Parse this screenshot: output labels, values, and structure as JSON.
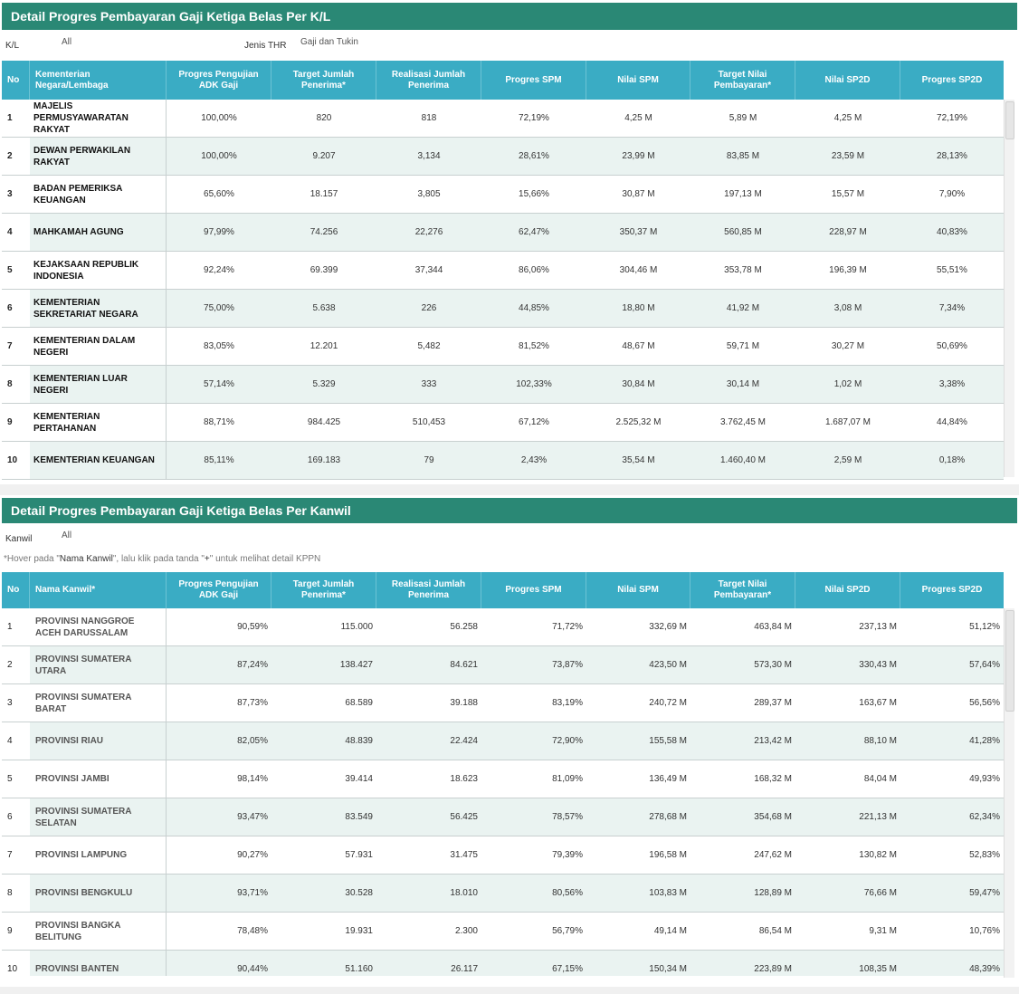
{
  "kl_section": {
    "title": "Detail Progres Pembayaran Gaji Ketiga Belas Per K/L",
    "filters": {
      "kl_label": "K/L",
      "kl_value": "All",
      "jenis_label": "Jenis THR",
      "jenis_value": "Gaji dan Tukin"
    },
    "columns": [
      "No",
      "Kementerian Negara/Lembaga",
      "Progres Pengujian ADK Gaji",
      "Target Jumlah Penerima*",
      "Realisasi Jumlah Penerima",
      "Progres SPM",
      "Nilai SPM",
      "Target Nilai Pembayaran*",
      "Nilai SP2D",
      "Progres SP2D"
    ],
    "rows": [
      [
        "1",
        "MAJELIS PERMUSYAWARATAN RAKYAT",
        "100,00%",
        "820",
        "818",
        "72,19%",
        "4,25 M",
        "5,89 M",
        "4,25 M",
        "72,19%"
      ],
      [
        "2",
        "DEWAN PERWAKILAN RAKYAT",
        "100,00%",
        "9.207",
        "3,134",
        "28,61%",
        "23,99 M",
        "83,85 M",
        "23,59 M",
        "28,13%"
      ],
      [
        "3",
        "BADAN PEMERIKSA KEUANGAN",
        "65,60%",
        "18.157",
        "3,805",
        "15,66%",
        "30,87 M",
        "197,13 M",
        "15,57 M",
        "7,90%"
      ],
      [
        "4",
        "MAHKAMAH AGUNG",
        "97,99%",
        "74.256",
        "22,276",
        "62,47%",
        "350,37 M",
        "560,85 M",
        "228,97 M",
        "40,83%"
      ],
      [
        "5",
        "KEJAKSAAN REPUBLIK INDONESIA",
        "92,24%",
        "69.399",
        "37,344",
        "86,06%",
        "304,46 M",
        "353,78 M",
        "196,39 M",
        "55,51%"
      ],
      [
        "6",
        "KEMENTERIAN SEKRETARIAT NEGARA",
        "75,00%",
        "5.638",
        "226",
        "44,85%",
        "18,80 M",
        "41,92 M",
        "3,08 M",
        "7,34%"
      ],
      [
        "7",
        "KEMENTERIAN DALAM  NEGERI",
        "83,05%",
        "12.201",
        "5,482",
        "81,52%",
        "48,67 M",
        "59,71 M",
        "30,27 M",
        "50,69%"
      ],
      [
        "8",
        "KEMENTERIAN LUAR NEGERI",
        "57,14%",
        "5.329",
        "333",
        "102,33%",
        "30,84 M",
        "30,14 M",
        "1,02 M",
        "3,38%"
      ],
      [
        "9",
        "KEMENTERIAN PERTAHANAN",
        "88,71%",
        "984.425",
        "510,453",
        "67,12%",
        "2.525,32 M",
        "3.762,45 M",
        "1.687,07 M",
        "44,84%"
      ],
      [
        "10",
        "KEMENTERIAN KEUANGAN",
        "85,11%",
        "169.183",
        "79",
        "2,43%",
        "35,54 M",
        "1.460,40 M",
        "2,59 M",
        "0,18%"
      ]
    ]
  },
  "kanwil_section": {
    "title": "Detail Progres Pembayaran Gaji Ketiga Belas Per Kanwil",
    "filters": {
      "kanwil_label": "Kanwil",
      "kanwil_value": "All"
    },
    "hint": {
      "part1": "*Hover pada \"",
      "bold1": "Nama Kanwil",
      "part2": "\", lalu klik pada tanda \"",
      "bold2": "+",
      "part3": "\" untuk melihat detail KPPN"
    },
    "columns": [
      "No",
      "Nama Kanwil*",
      "Progres Pengujian ADK Gaji",
      "Target Jumlah Penerima*",
      "Realisasi Jumlah Penerima",
      "Progres SPM",
      "Nilai SPM",
      "Target Nilai Pembayaran*",
      "Nilai SP2D",
      "Progres SP2D"
    ],
    "rows": [
      [
        "1",
        "PROVINSI NANGGROE ACEH DARUSSALAM",
        "90,59%",
        "115.000",
        "56.258",
        "71,72%",
        "332,69 M",
        "463,84 M",
        "237,13 M",
        "51,12%"
      ],
      [
        "2",
        "PROVINSI SUMATERA UTARA",
        "87,24%",
        "138.427",
        "84.621",
        "73,87%",
        "423,50 M",
        "573,30 M",
        "330,43 M",
        "57,64%"
      ],
      [
        "3",
        "PROVINSI SUMATERA BARAT",
        "87,73%",
        "68.589",
        "39.188",
        "83,19%",
        "240,72 M",
        "289,37 M",
        "163,67 M",
        "56,56%"
      ],
      [
        "4",
        "PROVINSI RIAU",
        "82,05%",
        "48.839",
        "22.424",
        "72,90%",
        "155,58 M",
        "213,42 M",
        "88,10 M",
        "41,28%"
      ],
      [
        "5",
        "PROVINSI JAMBI",
        "98,14%",
        "39.414",
        "18.623",
        "81,09%",
        "136,49 M",
        "168,32 M",
        "84,04 M",
        "49,93%"
      ],
      [
        "6",
        "PROVINSI SUMATERA SELATAN",
        "93,47%",
        "83.549",
        "56.425",
        "78,57%",
        "278,68 M",
        "354,68 M",
        "221,13 M",
        "62,34%"
      ],
      [
        "7",
        "PROVINSI LAMPUNG",
        "90,27%",
        "57.931",
        "31.475",
        "79,39%",
        "196,58 M",
        "247,62 M",
        "130,82 M",
        "52,83%"
      ],
      [
        "8",
        "PROVINSI BENGKULU",
        "93,71%",
        "30.528",
        "18.010",
        "80,56%",
        "103,83 M",
        "128,89 M",
        "76,66 M",
        "59,47%"
      ],
      [
        "9",
        "PROVINSI BANGKA BELITUNG",
        "78,48%",
        "19.931",
        "2.300",
        "56,79%",
        "49,14 M",
        "86,54 M",
        "9,31 M",
        "10,76%"
      ],
      [
        "10",
        "PROVINSI BANTEN",
        "90,44%",
        "51.160",
        "26.117",
        "67,15%",
        "150,34 M",
        "223,89 M",
        "108,35 M",
        "48,39%"
      ]
    ]
  }
}
